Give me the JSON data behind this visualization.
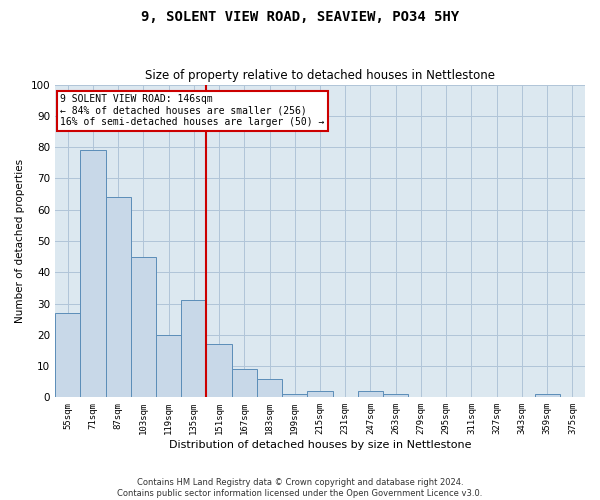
{
  "title": "9, SOLENT VIEW ROAD, SEAVIEW, PO34 5HY",
  "subtitle": "Size of property relative to detached houses in Nettlestone",
  "xlabel": "Distribution of detached houses by size in Nettlestone",
  "ylabel": "Number of detached properties",
  "bar_categories": [
    "55sqm",
    "71sqm",
    "87sqm",
    "103sqm",
    "119sqm",
    "135sqm",
    "151sqm",
    "167sqm",
    "183sqm",
    "199sqm",
    "215sqm",
    "231sqm",
    "247sqm",
    "263sqm",
    "279sqm",
    "295sqm",
    "311sqm",
    "327sqm",
    "343sqm",
    "359sqm",
    "375sqm"
  ],
  "bar_values": [
    27,
    79,
    64,
    45,
    20,
    31,
    17,
    9,
    6,
    1,
    2,
    0,
    2,
    1,
    0,
    0,
    0,
    0,
    0,
    1,
    0
  ],
  "bar_color": "#c8d8e8",
  "bar_edge_color": "#5b8db8",
  "vline_x": 5.5,
  "vline_color": "#cc0000",
  "annotation_title": "9 SOLENT VIEW ROAD: 146sqm",
  "annotation_line1": "← 84% of detached houses are smaller (256)",
  "annotation_line2": "16% of semi-detached houses are larger (50) →",
  "annotation_box_color": "#cc0000",
  "ylim": [
    0,
    100
  ],
  "yticks": [
    0,
    10,
    20,
    30,
    40,
    50,
    60,
    70,
    80,
    90,
    100
  ],
  "grid_color": "#b0c4d8",
  "background_color": "#dce8f0",
  "footer_line1": "Contains HM Land Registry data © Crown copyright and database right 2024.",
  "footer_line2": "Contains public sector information licensed under the Open Government Licence v3.0."
}
